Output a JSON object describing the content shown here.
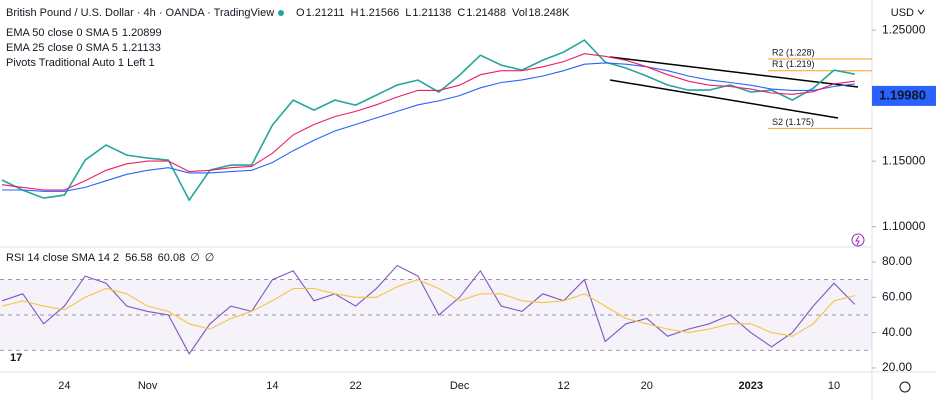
{
  "header": {
    "symbol": "British Pound / U.S. Dollar · 4h · OANDA · TradingView",
    "ohlc": [
      {
        "key": "O",
        "text": "1.21211"
      },
      {
        "key": "H",
        "text": "1.21566"
      },
      {
        "key": "L",
        "text": "1.21138"
      },
      {
        "key": "C",
        "text": "1.21488"
      },
      {
        "key": "Vol",
        "text": "18.248K"
      }
    ],
    "currency": "USD",
    "pivots_legend": "Pivots Traditional Auto 1 Left 1"
  },
  "chart_data": [
    {
      "type": "line",
      "ylim": [
        1.086,
        1.273
      ],
      "yticks": [
        {
          "value": 1.25,
          "label": "1.25000"
        },
        {
          "value": 1.15,
          "label": "1.15000"
        },
        {
          "value": 1.1,
          "label": "1.10000"
        }
      ],
      "series": [
        {
          "color": "#26a69a",
          "values": [
            1.1356,
            1.1279,
            1.1218,
            1.1241,
            1.1508,
            1.1623,
            1.1546,
            1.1523,
            1.1508,
            1.1203,
            1.1432,
            1.147,
            1.147,
            1.1775,
            1.1966,
            1.189,
            1.1966,
            1.1928,
            1.2004,
            1.2081,
            1.2119,
            1.2027,
            1.2157,
            1.2309,
            1.2233,
            1.2195,
            1.2271,
            1.2332,
            1.2424,
            1.2256,
            1.221,
            1.2149,
            1.2081,
            1.2042,
            1.2042,
            1.2081,
            1.2027,
            1.2042,
            1.1966,
            1.2057,
            1.2195,
            1.2164
          ]
        },
        {
          "name": "EMA 50 close 0 SMA 5",
          "last_label": "1.20899",
          "color": "#2962ff",
          "values": [
            1.128,
            1.128,
            1.127,
            1.127,
            1.13,
            1.135,
            1.14,
            1.143,
            1.145,
            1.141,
            1.141,
            1.142,
            1.143,
            1.149,
            1.158,
            1.166,
            1.173,
            1.178,
            1.183,
            1.188,
            1.193,
            1.196,
            1.2,
            1.206,
            1.21,
            1.212,
            1.215,
            1.219,
            1.224,
            1.225,
            1.224,
            1.222,
            1.219,
            1.215,
            1.212,
            1.21,
            1.208,
            1.205,
            1.204,
            1.204,
            1.207,
            1.209
          ]
        },
        {
          "name": "EMA 25 close 0 SMA 5",
          "last_label": "1.21133",
          "color": "#e91e63",
          "values": [
            1.132,
            1.13,
            1.128,
            1.128,
            1.135,
            1.143,
            1.148,
            1.15,
            1.15,
            1.142,
            1.143,
            1.145,
            1.146,
            1.156,
            1.17,
            1.178,
            1.184,
            1.188,
            1.193,
            1.199,
            1.204,
            1.204,
            1.208,
            1.216,
            1.219,
            1.219,
            1.222,
            1.226,
            1.232,
            1.23,
            1.227,
            1.222,
            1.216,
            1.211,
            1.208,
            1.207,
            1.205,
            1.202,
            1.201,
            1.203,
            1.209,
            1.211
          ]
        }
      ],
      "pivots": [
        {
          "value": 1.228,
          "label": "R2 (1.228)"
        },
        {
          "value": 1.219,
          "label": "R1 (1.219)"
        },
        {
          "value": 1.175,
          "label": "S2 (1.175)"
        }
      ],
      "pivot_color": "#f7a21b",
      "price_marker": {
        "value": 1.1998,
        "label": "1.19980",
        "color": "#2962ff"
      }
    },
    {
      "type": "line",
      "title": "RSI 14 close SMA 14 2",
      "legend_values": [
        "56.58",
        "60.08",
        "∅",
        "∅"
      ],
      "categories": [
        null,
        null,
        null,
        "24",
        null,
        null,
        null,
        "Nov",
        null,
        null,
        null,
        null,
        null,
        "14",
        null,
        null,
        null,
        "22",
        null,
        null,
        null,
        null,
        "Dec",
        null,
        null,
        null,
        null,
        "12",
        null,
        null,
        null,
        "20",
        null,
        null,
        null,
        null,
        "2023",
        null,
        null,
        null,
        "10",
        null
      ],
      "ylim": [
        17.7,
        86.8
      ],
      "yticks": [
        {
          "value": 80,
          "label": "80.00"
        },
        {
          "value": 60,
          "label": "60.00"
        },
        {
          "value": 40,
          "label": "40.00"
        },
        {
          "value": 20,
          "label": "20.00"
        }
      ],
      "levels": [
        70,
        50,
        30
      ],
      "series": [
        {
          "color": "#7e57c2",
          "values": [
            58,
            62,
            45,
            55,
            72,
            68,
            55,
            52,
            50,
            28,
            45,
            55,
            52,
            70,
            75,
            58,
            62,
            55,
            65,
            78,
            72,
            50,
            60,
            75,
            55,
            52,
            62,
            58,
            70,
            35,
            45,
            48,
            38,
            42,
            45,
            50,
            40,
            32,
            40,
            55,
            68,
            56
          ]
        },
        {
          "color": "#f5c542",
          "values": [
            55,
            58,
            55,
            53,
            60,
            65,
            62,
            55,
            52,
            45,
            42,
            48,
            52,
            58,
            65,
            65,
            62,
            60,
            60,
            66,
            70,
            65,
            58,
            62,
            62,
            58,
            57,
            58,
            62,
            55,
            48,
            45,
            42,
            40,
            42,
            45,
            45,
            40,
            38,
            45,
            58,
            61
          ]
        }
      ]
    }
  ]
}
